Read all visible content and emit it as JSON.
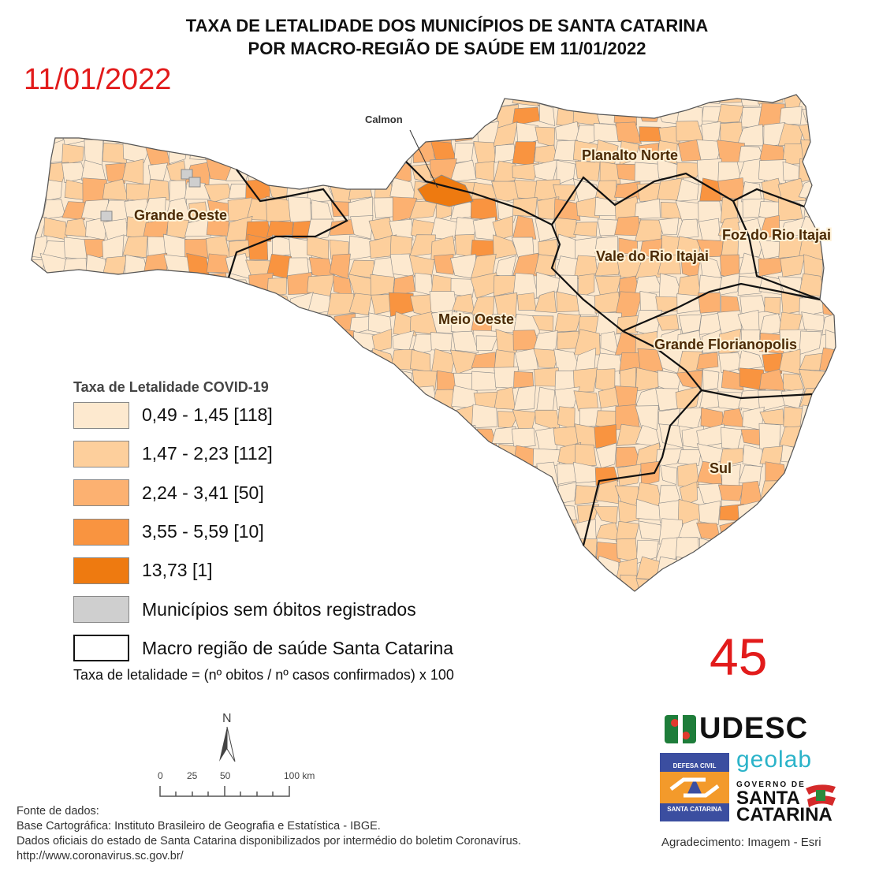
{
  "title_line1": "TAXA DE LETALIDADE DOS MUNICÍPIOS DE SANTA CATARINA",
  "title_line2": "POR MACRO-REGIÃO DE SAÚDE EM 11/01/2022",
  "date_stamp": "11/01/2022",
  "bulletin_number": "45",
  "map": {
    "callout": "Calmon",
    "regions": [
      "Grande Oeste",
      "Planalto Norte",
      "Foz do Rio Itajai",
      "Vale do Rio Itajai",
      "Meio Oeste",
      "Grande Florianopolis",
      "Sul"
    ]
  },
  "legend": {
    "title": "Taxa de Letalidade COVID-19",
    "items": [
      {
        "label": "0,49 - 1,45 [118]",
        "color": "#fde9cf"
      },
      {
        "label": "1,47 - 2,23 [112]",
        "color": "#fdcf9c"
      },
      {
        "label": "2,24 - 3,41 [50]",
        "color": "#fcb171"
      },
      {
        "label": "3,55 - 5,59 [10]",
        "color": "#f99440"
      },
      {
        "label": "13,73 [1]",
        "color": "#ee7a10"
      },
      {
        "label": "Municípios sem óbitos registrados",
        "color": "#cfcfcf"
      },
      {
        "label": "Macro região de saúde Santa Catarina",
        "color": "#ffffff"
      }
    ],
    "formula": "Taxa de letalidade = (nº obitos / nº casos confirmados) x 100"
  },
  "north_arrow": "N",
  "scale_bar": {
    "ticks": [
      "0",
      "25",
      "50",
      "100 km"
    ]
  },
  "sources": [
    "Fonte de dados:",
    "Base Cartográfica: Instituto Brasileiro de Geografia e Estatística - IBGE.",
    "Dados oficiais do estado de Santa Catarina disponibilizados por intermédio do boletim Coronavírus.",
    "http://www.coronavirus.sc.gov.br/"
  ],
  "logos": {
    "udesc": "UDESC",
    "geolab": "geolab",
    "defesa_civil_top": "DEFESA CIVIL",
    "defesa_civil_bottom": "SANTA CATARINA",
    "governo_line1": "GOVERNO DE",
    "governo_line2": "SANTA",
    "governo_line3": "CATARINA"
  },
  "credit": "Agradecimento: Imagem - Esri"
}
